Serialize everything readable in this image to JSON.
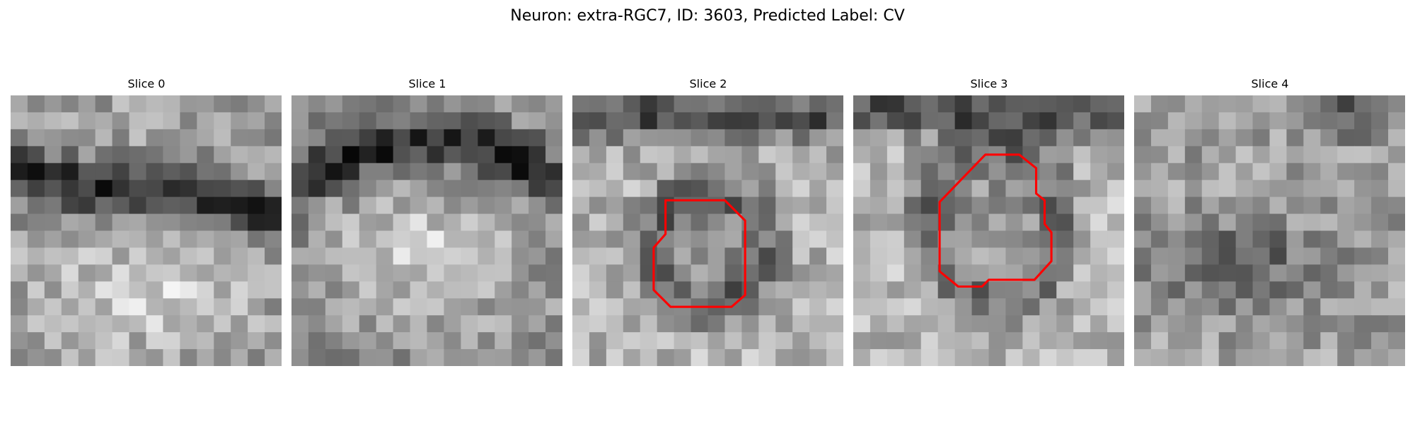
{
  "figure": {
    "title": "Neuron: extra-RGC7, ID: 3603, Predicted Label: CV"
  },
  "colors": {
    "contour": "#ff0000",
    "background": "#ffffff",
    "colormap": "gray"
  },
  "slices": [
    {
      "title": "Slice 0",
      "pattern": "dark diagonal band across upper-middle, bright blob in lower half",
      "contour": []
    },
    {
      "title": "Slice 1",
      "pattern": "dark arc across top, bright mottled region below",
      "contour": []
    },
    {
      "title": "Slice 2",
      "pattern": "dark top band, dark ring around medium-gray center",
      "contour": [
        [
          5.5,
          6.2
        ],
        [
          9.0,
          6.2
        ],
        [
          10.2,
          7.4
        ],
        [
          10.2,
          11.8
        ],
        [
          9.4,
          12.5
        ],
        [
          5.8,
          12.5
        ],
        [
          4.8,
          11.5
        ],
        [
          4.8,
          9.0
        ],
        [
          5.5,
          8.2
        ]
      ]
    },
    {
      "title": "Slice 3",
      "pattern": "dark top band, dark ring around medium-gray center",
      "contour": [
        [
          7.8,
          3.5
        ],
        [
          9.8,
          3.5
        ],
        [
          10.8,
          4.3
        ],
        [
          10.8,
          5.8
        ],
        [
          11.3,
          6.2
        ],
        [
          11.3,
          7.6
        ],
        [
          11.7,
          8.1
        ],
        [
          11.7,
          9.8
        ],
        [
          10.7,
          10.9
        ],
        [
          8.0,
          10.9
        ],
        [
          7.6,
          11.3
        ],
        [
          6.2,
          11.3
        ],
        [
          5.1,
          10.4
        ],
        [
          5.1,
          6.3
        ]
      ]
    },
    {
      "title": "Slice 4",
      "pattern": "speckled noise with darker lower-middle region",
      "contour": []
    }
  ]
}
